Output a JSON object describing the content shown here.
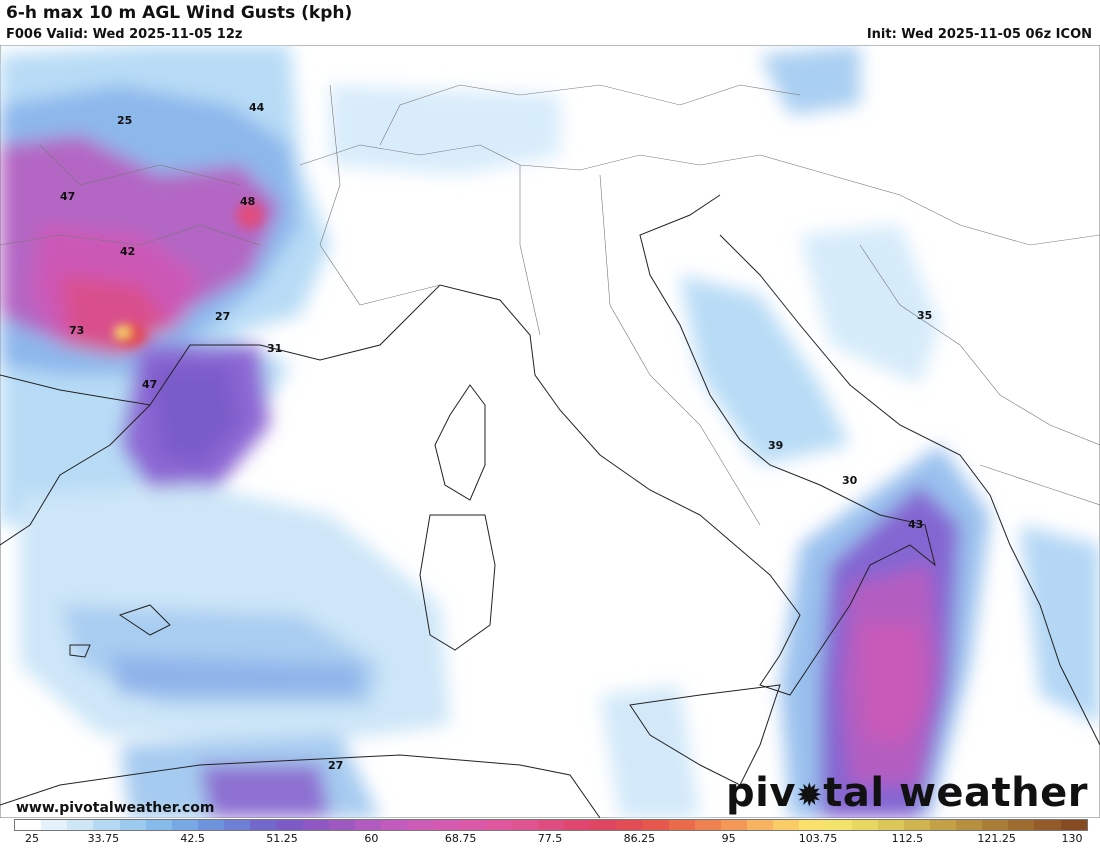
{
  "header": {
    "title": "6-h max 10 m AGL Wind Gusts (kph)",
    "valid": "F006 Valid: Wed 2025-11-05 12z",
    "init": "Init: Wed 2025-11-05 06z ICON"
  },
  "footer": {
    "url": "www.pivotalweather.com",
    "brand_pre": "piv",
    "brand_post": "tal weather"
  },
  "colorbar": {
    "ticks": [
      "25",
      "33.75",
      "42.5",
      "51.25",
      "60",
      "68.75",
      "77.5",
      "86.25",
      "95",
      "103.75",
      "112.5",
      "121.25",
      "130"
    ],
    "colors": [
      "#ffffff",
      "#e6f2fb",
      "#cfe6f7",
      "#b5d9f3",
      "#9dcbf0",
      "#86bbeb",
      "#78a9e6",
      "#6f94de",
      "#6f7ed6",
      "#7268cc",
      "#7d5bc6",
      "#8f58c4",
      "#a058c1",
      "#b15ac0",
      "#c25bbd",
      "#cd5bb8",
      "#d55ab2",
      "#dc59a9",
      "#e0579f",
      "#e05391",
      "#df4d80",
      "#df4770",
      "#e04561",
      "#e24c55",
      "#e6584d",
      "#ea6a4a",
      "#ef8050",
      "#f39857",
      "#f7b35f",
      "#f9cc66",
      "#fbe06c",
      "#f4e36a",
      "#e8d761",
      "#dbc658",
      "#cfb44f",
      "#c3a247",
      "#b7903f",
      "#ab7e37",
      "#9f6c30",
      "#935b29",
      "#874b23"
    ]
  },
  "map": {
    "labels": [
      "25",
      "44",
      "47",
      "48",
      "42",
      "73",
      "27",
      "31",
      "47",
      "35",
      "39",
      "30",
      "43",
      "27"
    ]
  }
}
